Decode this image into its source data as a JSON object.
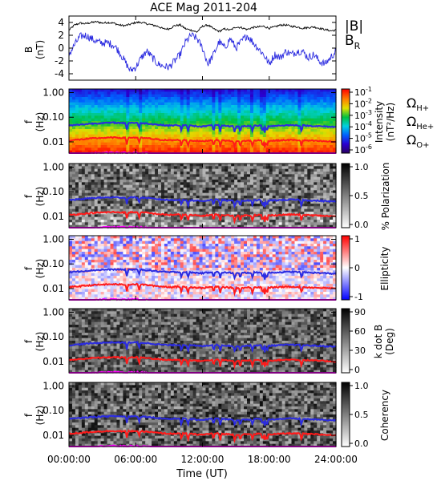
{
  "chart_data": {
    "type": "multi-panel",
    "title": "ACE Mag 2011-204",
    "xlabel": "Time (UT)",
    "x_ticks": [
      "00:00:00",
      "06:00:00",
      "12:00:00",
      "18:00:00",
      "24:00:00"
    ],
    "x_range": [
      0,
      24
    ],
    "freq_ticks": [
      "1.00",
      "0.10",
      "0.01"
    ],
    "freq_ylabel": [
      "f",
      "(Hz)"
    ],
    "freq_range": [
      0.0035,
      1.4
    ],
    "panels": [
      {
        "id": "magnetic_field",
        "type": "line",
        "ylabel": [
          "B",
          "(nT)"
        ],
        "ylim": [
          -5,
          5
        ],
        "y_ticks": [
          "4",
          "2",
          "0",
          "-2",
          "-4"
        ],
        "legend": [
          {
            "label": "|B|",
            "color": "#000000"
          },
          {
            "label": "B",
            "sub": "R",
            "color": "#2b2be0"
          }
        ],
        "series": [
          {
            "name": "|B|",
            "color": "#000000",
            "x": [
              0,
              0.5,
              1,
              1.5,
              2,
              2.5,
              3,
              3.5,
              4,
              4.5,
              5,
              5.5,
              6,
              6.5,
              7,
              7.5,
              8,
              8.5,
              9,
              9.5,
              10,
              10.5,
              11,
              11.5,
              12,
              12.5,
              13,
              13.5,
              14,
              14.5,
              15,
              15.5,
              16,
              16.5,
              17,
              17.5,
              18,
              18.5,
              19,
              19.5,
              20,
              20.5,
              21,
              21.5,
              22,
              22.5,
              23,
              23.5,
              24
            ],
            "values": [
              2.8,
              3.6,
              3.9,
              3.8,
              4.0,
              4.1,
              3.9,
              4.0,
              3.9,
              3.6,
              3.5,
              3.7,
              4.0,
              4.0,
              3.8,
              3.6,
              3.4,
              3.0,
              3.0,
              3.5,
              3.6,
              3.0,
              2.8,
              2.5,
              3.4,
              3.6,
              3.0,
              2.6,
              3.0,
              2.8,
              3.3,
              3.2,
              2.9,
              3.2,
              3.3,
              3.4,
              3.1,
              3.3,
              3.6,
              3.6,
              3.4,
              3.3,
              3.1,
              3.2,
              3.3,
              3.1,
              2.9,
              2.7,
              2.8
            ]
          },
          {
            "name": "BR",
            "color": "#2b2be0",
            "x": [
              0,
              0.5,
              1,
              1.5,
              2,
              2.5,
              3,
              3.5,
              4,
              4.5,
              5,
              5.5,
              6,
              6.5,
              7,
              7.5,
              8,
              8.5,
              9,
              9.5,
              10,
              10.5,
              11,
              11.5,
              12,
              12.5,
              13,
              13.5,
              14,
              14.5,
              15,
              15.5,
              16,
              16.5,
              17,
              17.5,
              18,
              18.5,
              19,
              19.5,
              20,
              20.5,
              21,
              21.5,
              22,
              22.5,
              23,
              23.5,
              24
            ],
            "values": [
              -1.0,
              0.5,
              1.8,
              2.0,
              1.5,
              1.0,
              0.8,
              0.8,
              0.5,
              -0.5,
              -2.0,
              -3.5,
              -3.0,
              -1.5,
              -0.5,
              -1.5,
              -2.5,
              -2.8,
              -3.0,
              -2.0,
              -1.0,
              1.0,
              2.0,
              1.5,
              0.0,
              -2.5,
              -1.0,
              1.0,
              0.0,
              1.5,
              0.0,
              1.0,
              2.0,
              1.0,
              0.0,
              -1.0,
              -2.5,
              -1.0,
              -1.5,
              -0.5,
              -1.0,
              -0.5,
              -0.5,
              -1.5,
              -1.0,
              -2.0,
              -2.5,
              -1.5,
              -0.5
            ]
          }
        ]
      },
      {
        "id": "intensity",
        "type": "heatmap",
        "colorbar": {
          "label": "Intensity",
          "units": "(nT²/Hz)",
          "palette": "rainbow",
          "ticks": [
            {
              "base": "10",
              "exp": "-1"
            },
            {
              "base": "10",
              "exp": "-2"
            },
            {
              "base": "10",
              "exp": "-3"
            },
            {
              "base": "10",
              "exp": "-4"
            },
            {
              "base": "10",
              "exp": "-5"
            },
            {
              "base": "10",
              "exp": "-6"
            }
          ]
        },
        "legend": [
          {
            "label": "Ω",
            "sub": "H+",
            "color": "#2b2be0"
          },
          {
            "label": "Ω",
            "sub": "He+",
            "color": "#ff1a1a"
          },
          {
            "label": "Ω",
            "sub": "O+",
            "color": "#ff00ff"
          }
        ]
      },
      {
        "id": "polarization",
        "type": "heatmap",
        "colorbar": {
          "label": "% Polarization",
          "palette": "grayscale",
          "ticks": [
            "1.0",
            "0.5",
            "0.0"
          ]
        }
      },
      {
        "id": "ellipticity",
        "type": "heatmap",
        "colorbar": {
          "label": "Ellipticity",
          "palette": "blue-white-red",
          "ticks": [
            "1",
            "0",
            "-1"
          ]
        }
      },
      {
        "id": "k_dot_B",
        "type": "heatmap",
        "colorbar": {
          "label": "k dot B",
          "units": "(Deg)",
          "palette": "grayscale",
          "ticks": [
            "90",
            "60",
            "30",
            "0"
          ]
        }
      },
      {
        "id": "coherency",
        "type": "heatmap",
        "colorbar": {
          "label": "Coherency",
          "palette": "grayscale",
          "ticks": [
            "1.0",
            "0.5",
            "0.0"
          ]
        }
      }
    ],
    "overlays": [
      {
        "name": "Omega H+",
        "color": "#2b2be0",
        "x": [
          0,
          1,
          2,
          3,
          4,
          5,
          6,
          7,
          8,
          9,
          10,
          11,
          12,
          13,
          14,
          15,
          16,
          17,
          18,
          19,
          20,
          21,
          22,
          23,
          24
        ],
        "values": [
          0.046,
          0.05,
          0.055,
          0.058,
          0.06,
          0.058,
          0.06,
          0.056,
          0.05,
          0.046,
          0.048,
          0.045,
          0.042,
          0.048,
          0.045,
          0.042,
          0.044,
          0.046,
          0.044,
          0.046,
          0.048,
          0.046,
          0.044,
          0.042,
          0.04
        ]
      },
      {
        "name": "Omega He+",
        "color": "#ff1a1a",
        "x": [
          0,
          1,
          2,
          3,
          4,
          5,
          6,
          7,
          8,
          9,
          10,
          11,
          12,
          13,
          14,
          15,
          16,
          17,
          18,
          19,
          20,
          21,
          22,
          23,
          24
        ],
        "values": [
          0.0115,
          0.0125,
          0.0137,
          0.0145,
          0.015,
          0.0145,
          0.015,
          0.014,
          0.0125,
          0.0115,
          0.012,
          0.0113,
          0.0105,
          0.012,
          0.0113,
          0.0105,
          0.011,
          0.0115,
          0.011,
          0.0115,
          0.012,
          0.0115,
          0.011,
          0.0105,
          0.01
        ]
      },
      {
        "name": "Omega O+",
        "color": "#ff00ff",
        "x": [
          0,
          1,
          2,
          3,
          4,
          5,
          6,
          7,
          8,
          9,
          10,
          11,
          12,
          13,
          14,
          15,
          16,
          17,
          18,
          19,
          20,
          21,
          22,
          23,
          24
        ],
        "values": [
          0.0029,
          0.0031,
          0.0034,
          0.0036,
          0.0037,
          0.0036,
          0.0037,
          0.0035,
          0.0031,
          0.0029,
          0.003,
          0.0028,
          0.0026,
          0.003,
          0.0028,
          0.0026,
          0.0027,
          0.0029,
          0.0027,
          0.0029,
          0.003,
          0.0029,
          0.0027,
          0.0026,
          0.0025
        ]
      }
    ],
    "overlay_dips": [
      5.2,
      6.3,
      10.1,
      10.7,
      13.0,
      13.6,
      14.9,
      15.4,
      16.5,
      17.4,
      17.6,
      17.8,
      20.9
    ]
  }
}
